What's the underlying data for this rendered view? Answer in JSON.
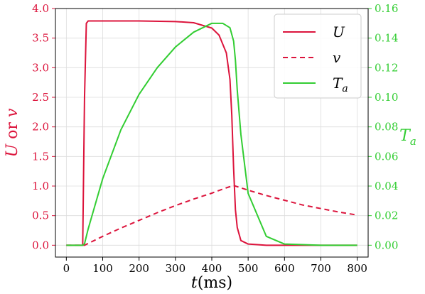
{
  "chart_data": {
    "type": "line",
    "xlabel": "t(ms)",
    "ylabel_left": "U or v",
    "ylabel_right": "T_a",
    "xlim": [
      -30,
      830
    ],
    "ylim_left": [
      -0.2,
      4.0
    ],
    "ylim_right": [
      0.0,
      0.16
    ],
    "right_axis_zero_on_left": 0.0,
    "x_ticks": [
      "0",
      "100",
      "200",
      "300",
      "400",
      "500",
      "600",
      "700",
      "800"
    ],
    "y_left_ticks": [
      "0.0",
      "0.5",
      "1.0",
      "1.5",
      "2.0",
      "2.5",
      "3.0",
      "3.5",
      "4.0"
    ],
    "y_right_ticks": [
      "0.00",
      "0.02",
      "0.04",
      "0.06",
      "0.08",
      "0.10",
      "0.12",
      "0.14",
      "0.16"
    ],
    "grid": true,
    "legend_position": "top-right",
    "colors": {
      "U": "#dc143c",
      "v": "#dc143c",
      "T_a": "#32cd32"
    },
    "series": [
      {
        "name": "U",
        "axis": "left",
        "style": "solid",
        "x": [
          0,
          45,
          50,
          55,
          60,
          100,
          200,
          300,
          350,
          400,
          420,
          440,
          450,
          455,
          460,
          465,
          470,
          480,
          500,
          550,
          600,
          700,
          800
        ],
        "y": [
          0.0,
          0.0,
          2.5,
          3.75,
          3.79,
          3.79,
          3.79,
          3.78,
          3.76,
          3.67,
          3.55,
          3.25,
          2.8,
          2.2,
          1.3,
          0.6,
          0.3,
          0.08,
          0.02,
          0.0,
          0.0,
          0.0,
          0.0
        ]
      },
      {
        "name": "v",
        "axis": "left",
        "style": "dashed",
        "x": [
          0,
          50,
          100,
          150,
          200,
          250,
          300,
          350,
          400,
          440,
          460,
          500,
          550,
          600,
          650,
          700,
          750,
          800
        ],
        "y": [
          0.0,
          0.0,
          0.15,
          0.29,
          0.42,
          0.55,
          0.67,
          0.78,
          0.88,
          0.97,
          1.01,
          0.93,
          0.84,
          0.76,
          0.68,
          0.62,
          0.56,
          0.51
        ]
      },
      {
        "name": "T_a",
        "axis": "right",
        "style": "solid",
        "x": [
          0,
          45,
          50,
          60,
          80,
          100,
          150,
          200,
          250,
          300,
          350,
          400,
          430,
          450,
          460,
          465,
          470,
          480,
          500,
          550,
          600,
          700,
          800
        ],
        "y": [
          0.0,
          0.0,
          0.001,
          0.011,
          0.028,
          0.045,
          0.078,
          0.102,
          0.12,
          0.134,
          0.144,
          0.15,
          0.15,
          0.147,
          0.138,
          0.125,
          0.105,
          0.075,
          0.035,
          0.006,
          0.0008,
          0.0,
          0.0
        ]
      }
    ],
    "legend": [
      {
        "series": "U",
        "label": "U"
      },
      {
        "series": "v",
        "label": "v"
      },
      {
        "series": "T_a",
        "label": "Ta"
      }
    ]
  }
}
